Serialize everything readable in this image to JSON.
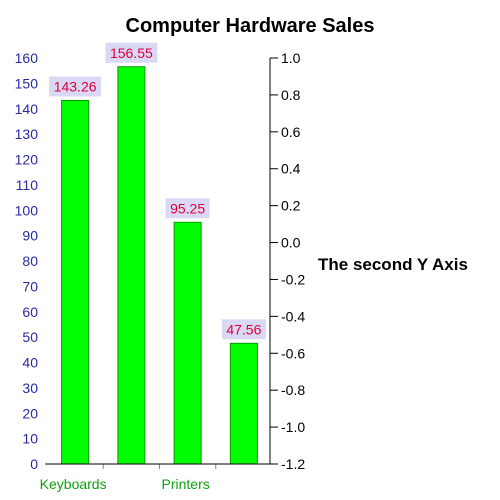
{
  "chart_data": {
    "type": "bar",
    "title": "Computer Hardware Sales",
    "categories": [
      "Keyboards",
      "",
      "Printers",
      ""
    ],
    "values": [
      143.26,
      156.55,
      95.25,
      47.56
    ],
    "value_labels": [
      "143.26",
      "156.55",
      "95.25",
      "47.56"
    ],
    "ylim": [
      0,
      160
    ],
    "y_ticks": [
      "0",
      "10",
      "20",
      "30",
      "40",
      "50",
      "60",
      "70",
      "80",
      "90",
      "100",
      "110",
      "120",
      "130",
      "140",
      "150",
      "160"
    ],
    "y2label": "The second Y Axis",
    "y2lim": [
      -1.2,
      1.0
    ],
    "y2_ticks": [
      "-1.2",
      "-1.0",
      "-0.8",
      "-0.6",
      "-0.4",
      "-0.2",
      "0.0",
      "0.2",
      "0.4",
      "0.6",
      "0.8",
      "1.0"
    ],
    "grid": false,
    "legend": "none",
    "colors": {
      "bar_fill": "#00ff00",
      "bar_stroke": "#009a00",
      "left_tick_text": "#2a2aa6",
      "category_text": "#11a011",
      "data_label_text": "#e0003c",
      "data_label_bg": "#d9d9f5"
    }
  }
}
